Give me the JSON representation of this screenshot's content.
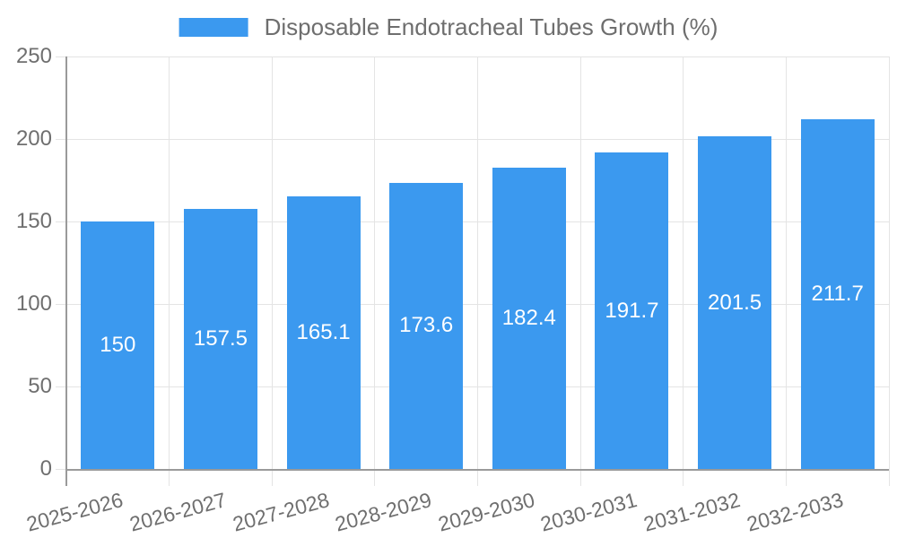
{
  "colors": {
    "bar": "#3b99ef",
    "axis": "#9a9a9a",
    "grid": "#e4e4e4",
    "tick_text": "#6f6f6f",
    "legend_text": "#6e6e6e",
    "bar_label": "#ffffff",
    "background": "#ffffff"
  },
  "chart_data": {
    "type": "bar",
    "title": "Disposable Endotracheal Tubes Growth (%)",
    "legend_entries": [
      "Disposable Endotracheal Tubes Growth (%)"
    ],
    "legend_position": "top",
    "categories": [
      "2025-2026",
      "2026-2027",
      "2027-2028",
      "2028-2029",
      "2029-2030",
      "2030-2031",
      "2031-2032",
      "2032-2033"
    ],
    "values": [
      150,
      157.5,
      165.1,
      173.6,
      182.4,
      191.7,
      201.5,
      211.7
    ],
    "xlabel": "",
    "ylabel": "",
    "ylim": [
      0,
      250
    ],
    "y_ticks": [
      0,
      50,
      100,
      150,
      200,
      250
    ],
    "grid": true,
    "bar_value_labels_visible": true,
    "x_label_rotation_deg": -15
  }
}
